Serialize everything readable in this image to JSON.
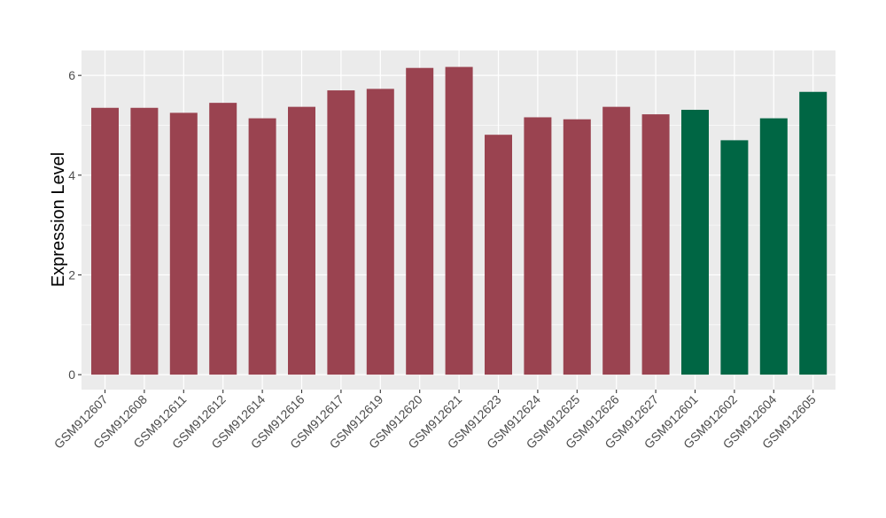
{
  "chart_data": {
    "type": "bar",
    "title": "",
    "xlabel": "",
    "ylabel": "Expression Level",
    "ylim": [
      -0.3,
      6.5
    ],
    "yticks": [
      0,
      2,
      4,
      6
    ],
    "grid": true,
    "legend": "none",
    "categories": [
      "GSM912607",
      "GSM912608",
      "GSM912611",
      "GSM912612",
      "GSM912614",
      "GSM912616",
      "GSM912617",
      "GSM912619",
      "GSM912620",
      "GSM912621",
      "GSM912623",
      "GSM912624",
      "GSM912625",
      "GSM912626",
      "GSM912627",
      "GSM912601",
      "GSM912602",
      "GSM912604",
      "GSM912605"
    ],
    "values": [
      5.35,
      5.35,
      5.25,
      5.45,
      5.14,
      5.37,
      5.7,
      5.73,
      6.15,
      6.17,
      4.81,
      5.16,
      5.12,
      5.37,
      5.22,
      5.31,
      4.7,
      5.14,
      5.67
    ],
    "bar_colors": [
      "#9a4350",
      "#9a4350",
      "#9a4350",
      "#9a4350",
      "#9a4350",
      "#9a4350",
      "#9a4350",
      "#9a4350",
      "#9a4350",
      "#9a4350",
      "#9a4350",
      "#9a4350",
      "#9a4350",
      "#9a4350",
      "#9a4350",
      "#006644",
      "#006644",
      "#006644",
      "#006644"
    ],
    "panel_background": "#ebebeb",
    "gridline_color": "#ffffff"
  }
}
